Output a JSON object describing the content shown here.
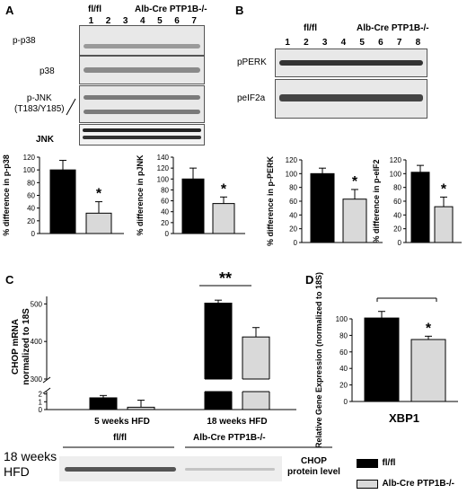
{
  "panels": {
    "A": {
      "label": "A",
      "group_fl": "fl/fl",
      "group_ko": "Alb-Cre PTP1B-/-",
      "lanes": [
        "1",
        "2",
        "3",
        "4",
        "5",
        "6",
        "7"
      ],
      "blots": [
        "p-p38",
        "p38",
        "p-JNK\n(T183/Y185)",
        "JNK"
      ]
    },
    "B": {
      "label": "B",
      "group_fl": "fl/fl",
      "group_ko": "Alb-Cre PTP1B-/-",
      "lanes": [
        "1",
        "2",
        "3",
        "4",
        "5",
        "6",
        "7",
        "8"
      ],
      "blots": [
        "pPERK",
        "peIF2a"
      ]
    },
    "C": {
      "label": "C"
    },
    "D": {
      "label": "D"
    },
    "E": {
      "time_label": "18 weeks\nHFD",
      "group_fl": "fl/fl",
      "group_ko": "Alb-Cre PTP1B-/-",
      "title": "CHOP\nprotein level",
      "legend": [
        {
          "label": "fl/fl",
          "color": "#000000"
        },
        {
          "label": "Alb-Cre PTP1B-/-",
          "color": "#d9d9d9"
        }
      ]
    }
  },
  "colors": {
    "fl": "#000000",
    "ko": "#d9d9d9"
  },
  "chart_data": [
    {
      "id": "A-p38",
      "type": "bar",
      "ylabel": "% difference in p-p38",
      "categories": [
        "fl/fl",
        "Alb-Cre PTP1B-/-"
      ],
      "values": [
        100,
        32
      ],
      "errors": [
        15,
        18
      ],
      "ylim": [
        0,
        120
      ],
      "yticks": [
        0,
        20,
        40,
        60,
        80,
        100,
        120
      ],
      "annotation": "*"
    },
    {
      "id": "A-pJNK",
      "type": "bar",
      "ylabel": "% difference in pJNK",
      "categories": [
        "fl/fl",
        "Alb-Cre PTP1B-/-"
      ],
      "values": [
        100,
        55
      ],
      "errors": [
        20,
        12
      ],
      "ylim": [
        0,
        140
      ],
      "yticks": [
        0,
        20,
        40,
        60,
        80,
        100,
        120,
        140
      ],
      "annotation": "*"
    },
    {
      "id": "B-pPERK",
      "type": "bar",
      "ylabel": "% difference in p-PERK",
      "categories": [
        "fl/fl",
        "Alb-Cre PTP1B-/-"
      ],
      "values": [
        100,
        63
      ],
      "errors": [
        8,
        14
      ],
      "ylim": [
        0,
        120
      ],
      "yticks": [
        0,
        20,
        40,
        60,
        80,
        100,
        120
      ],
      "annotation": "*"
    },
    {
      "id": "B-peIF2",
      "type": "bar",
      "ylabel": "% difference in p-eIF2",
      "categories": [
        "fl/fl",
        "Alb-Cre PTP1B-/-"
      ],
      "values": [
        102,
        52
      ],
      "errors": [
        10,
        14
      ],
      "ylim": [
        0,
        120
      ],
      "yticks": [
        0,
        20,
        40,
        60,
        80,
        100,
        120
      ],
      "annotation": "*"
    },
    {
      "id": "C-CHOP",
      "type": "bar",
      "ylabel": "CHOP mRNA\nnormalized to 18S",
      "categories": [
        "5 weeks HFD",
        "18 weeks HFD"
      ],
      "series": [
        {
          "name": "fl/fl",
          "values": [
            1.5,
            502
          ],
          "errors": [
            0.3,
            8
          ]
        },
        {
          "name": "Alb-Cre PTP1B-/-",
          "values": [
            0.3,
            412
          ],
          "errors": [
            0.9,
            25
          ]
        }
      ],
      "yticks_lower": [
        0,
        1,
        2
      ],
      "yticks_upper": [
        300,
        400,
        500
      ],
      "annotation": "**"
    },
    {
      "id": "D-XBP1",
      "type": "bar",
      "ylabel": "Relative Gene Expression\n(normalized to 18S)",
      "xlabel": "XBP1",
      "categories": [
        "fl/fl",
        "Alb-Cre PTP1B-/-"
      ],
      "values": [
        101,
        75
      ],
      "errors": [
        8,
        4
      ],
      "ylim": [
        0,
        100
      ],
      "yticks": [
        0,
        20,
        40,
        60,
        80,
        100
      ],
      "annotation": "*"
    }
  ]
}
